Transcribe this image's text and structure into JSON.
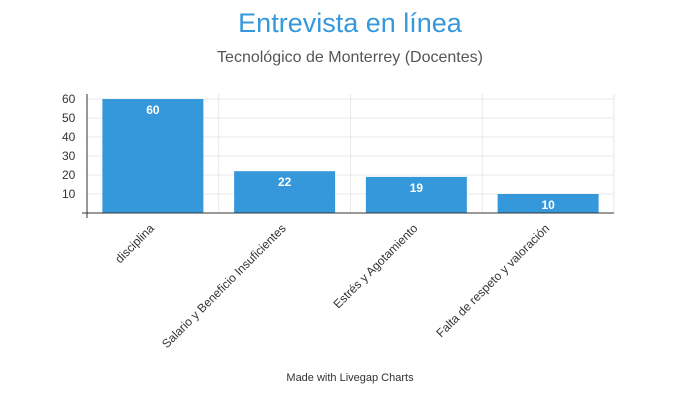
{
  "colors": {
    "bar": "#3498db",
    "title": "#3498db",
    "grid": "#e8e8e8",
    "axis": "#333333"
  },
  "chart_data": {
    "type": "bar",
    "title": "Entrevista en línea",
    "subtitle": "Tecnológico de Monterrey (Docentes)",
    "categories": [
      "disciplina",
      "Salario y Beneficio Insuficientes",
      "Estrés y Agotamiento",
      "Falta de respeto y valoración"
    ],
    "values": [
      60,
      22,
      19,
      10
    ],
    "data_labels": [
      "60",
      "22",
      "19",
      "10"
    ],
    "y_ticks": [
      10,
      20,
      30,
      40,
      50,
      60
    ],
    "y_tick_labels": [
      "10",
      "20",
      "30",
      "40",
      "50",
      "60"
    ],
    "ylim": [
      0,
      60
    ],
    "xlabel": "",
    "ylabel": "",
    "grid": true,
    "legend": "none"
  },
  "footer": {
    "text": "Made with Livegap Charts"
  }
}
